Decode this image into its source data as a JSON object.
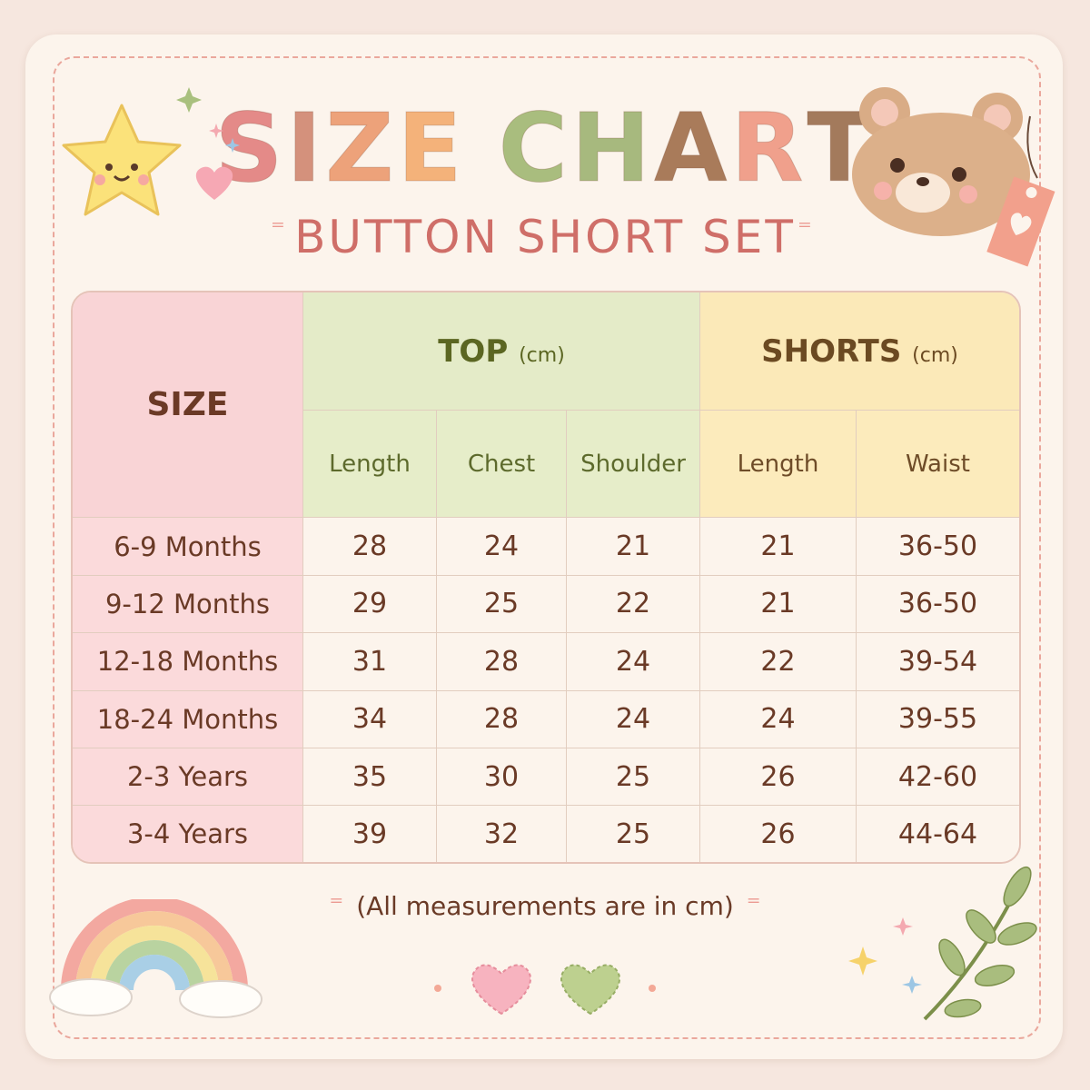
{
  "title": {
    "letters": [
      {
        "ch": "S",
        "color": "#e48a88"
      },
      {
        "ch": "I",
        "color": "#d4917c"
      },
      {
        "ch": "Z",
        "color": "#eda27a"
      },
      {
        "ch": "E",
        "color": "#f4b27a"
      },
      {
        "ch": " ",
        "color": "#000000"
      },
      {
        "ch": "C",
        "color": "#a9bd7e"
      },
      {
        "ch": "H",
        "color": "#a7b97e"
      },
      {
        "ch": "A",
        "color": "#a97b5a"
      },
      {
        "ch": "R",
        "color": "#f0a08c"
      },
      {
        "ch": "T",
        "color": "#a37a5c"
      }
    ],
    "text": "SIZE CHART"
  },
  "subtitle": "BUTTON SHORT SET",
  "table": {
    "size_header": "SIZE",
    "groups": [
      {
        "label": "TOP",
        "unit": "(cm)",
        "columns": [
          "Length",
          "Chest",
          "Shoulder"
        ]
      },
      {
        "label": "SHORTS",
        "unit": "(cm)",
        "columns": [
          "Length",
          "Waist"
        ]
      }
    ],
    "rows": [
      {
        "size": "6-9 Months",
        "values": [
          "28",
          "24",
          "21",
          "21",
          "36-50"
        ]
      },
      {
        "size": "9-12 Months",
        "values": [
          "29",
          "25",
          "22",
          "21",
          "36-50"
        ]
      },
      {
        "size": "12-18 Months",
        "values": [
          "31",
          "28",
          "24",
          "22",
          "39-54"
        ]
      },
      {
        "size": "18-24 Months",
        "values": [
          "34",
          "28",
          "24",
          "24",
          "39-55"
        ]
      },
      {
        "size": "2-3 Years",
        "values": [
          "35",
          "30",
          "25",
          "26",
          "42-60"
        ]
      },
      {
        "size": "3-4 Years",
        "values": [
          "39",
          "32",
          "25",
          "26",
          "44-64"
        ]
      }
    ]
  },
  "note": "(All measurements are in cm)",
  "colors": {
    "size_col": "#fbdadb",
    "top_header": "#e4ebc8",
    "shorts_header": "#fbe9b8",
    "text": "#6a3a26"
  },
  "icons": [
    "star-icon",
    "heart-icon",
    "sparkle-icon",
    "bear-icon",
    "tag-icon",
    "rainbow-icon",
    "leaf-branch-icon"
  ]
}
